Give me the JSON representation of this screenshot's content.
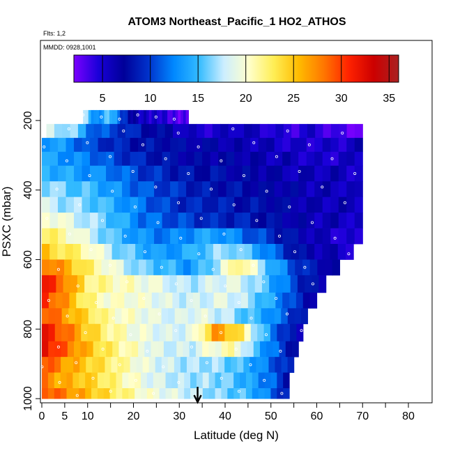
{
  "chart_data": {
    "type": "heatmap",
    "title": "ATOM3 Northeast_Pacific_1 HO2_ATHOS",
    "flights_label": "Flts: 1,2",
    "dates_label": "MMDD: 0928,1001",
    "xlabel": "Latitude (deg N)",
    "ylabel": "PSXC (mbar)",
    "xlim": [
      0,
      80
    ],
    "ylim": [
      1000,
      100
    ],
    "x_ticks": [
      "0",
      "5",
      "10",
      "20",
      "30",
      "40",
      "50",
      "60",
      "70",
      "80"
    ],
    "x_tick_values": [
      0,
      5,
      10,
      20,
      30,
      40,
      50,
      60,
      70,
      80
    ],
    "y_ticks": [
      "200",
      "400",
      "600",
      "800",
      "1000"
    ],
    "y_tick_values": [
      200,
      400,
      600,
      800,
      1000
    ],
    "colorbar": {
      "range": [
        2,
        36
      ],
      "tick_labels": [
        "5",
        "10",
        "15",
        "20",
        "25",
        "30",
        "35"
      ],
      "tick_values": [
        5,
        10,
        15,
        20,
        25,
        30,
        35
      ],
      "colors": [
        "#7b00ff",
        "#1800d8",
        "#000099",
        "#0033cc",
        "#0088ff",
        "#33bbff",
        "#cceeff",
        "#ffffcc",
        "#ffee55",
        "#ffbb00",
        "#ff7700",
        "#ff2200",
        "#cc0000",
        "#aa2222"
      ]
    },
    "arrow_latitude": 34,
    "grid": false,
    "rows": [
      {
        "p": 190,
        "x0": 9,
        "x1": 32,
        "v": [
          18,
          12,
          16,
          10,
          6,
          5,
          5,
          3,
          3
        ]
      },
      {
        "p": 230,
        "x0": 1,
        "x1": 70,
        "v": [
          18,
          17,
          11,
          10,
          8,
          7,
          5,
          5,
          6,
          5,
          4,
          5,
          3,
          3
        ]
      },
      {
        "p": 270,
        "x0": 0,
        "x1": 70,
        "v": [
          14,
          13,
          10,
          9,
          8,
          8,
          7,
          7,
          6,
          6,
          5,
          5,
          5,
          6
        ]
      },
      {
        "p": 310,
        "x0": 0,
        "x1": 70,
        "v": [
          14,
          13,
          12,
          10,
          9,
          8,
          7,
          7,
          7,
          6,
          6,
          5,
          5,
          6
        ]
      },
      {
        "p": 350,
        "x0": 0,
        "x1": 70,
        "v": [
          15,
          14,
          13,
          12,
          10,
          9,
          8,
          8,
          7,
          7,
          6,
          6,
          6,
          5
        ]
      },
      {
        "p": 400,
        "x0": 0,
        "x1": 70,
        "v": [
          17,
          16,
          15,
          13,
          11,
          10,
          9,
          8,
          8,
          7,
          7,
          6,
          6,
          5
        ]
      },
      {
        "p": 440,
        "x0": 0,
        "x1": 70,
        "v": [
          18,
          17,
          16,
          14,
          12,
          10,
          9,
          9,
          8,
          8,
          7,
          6,
          6,
          6
        ]
      },
      {
        "p": 490,
        "x0": 0,
        "x1": 70,
        "v": [
          21,
          19,
          17,
          15,
          12,
          11,
          10,
          9,
          9,
          8,
          7,
          6,
          6,
          5
        ]
      },
      {
        "p": 530,
        "x0": 0,
        "x1": 70,
        "v": [
          23,
          21,
          18,
          15,
          13,
          12,
          13,
          14,
          12,
          10,
          8,
          6,
          5,
          4
        ]
      },
      {
        "p": 580,
        "x0": 0,
        "x1": 68,
        "v": [
          25,
          23,
          21,
          17,
          15,
          13,
          14,
          16,
          17,
          14,
          10,
          7,
          6,
          5
        ]
      },
      {
        "p": 620,
        "x0": 0,
        "x1": 65,
        "v": [
          29,
          26,
          22,
          19,
          16,
          15,
          13,
          17,
          23,
          16,
          11,
          8,
          6
        ]
      },
      {
        "p": 670,
        "x0": 0,
        "x1": 62,
        "v": [
          32,
          28,
          22,
          21,
          20,
          19,
          17,
          18,
          19,
          17,
          13,
          9,
          6
        ]
      },
      {
        "p": 720,
        "x0": 0,
        "x1": 60,
        "v": [
          31,
          27,
          22,
          20,
          20,
          19,
          18,
          18,
          19,
          17,
          14,
          10,
          6
        ]
      },
      {
        "p": 760,
        "x0": 0,
        "x1": 58,
        "v": [
          30,
          27,
          24,
          21,
          20,
          19,
          18,
          19,
          18,
          16,
          14,
          11,
          7
        ]
      },
      {
        "p": 810,
        "x0": 0,
        "x1": 57,
        "v": [
          32,
          29,
          25,
          22,
          20,
          19,
          18,
          19,
          27,
          24,
          16,
          10,
          6
        ]
      },
      {
        "p": 860,
        "x0": 0,
        "x1": 56,
        "v": [
          33,
          29,
          26,
          23,
          21,
          19,
          18,
          18,
          20,
          21,
          15,
          11,
          7
        ]
      },
      {
        "p": 900,
        "x0": 0,
        "x1": 55,
        "v": [
          30,
          27,
          25,
          23,
          21,
          19,
          18,
          17,
          17,
          16,
          14,
          11,
          8
        ]
      },
      {
        "p": 950,
        "x0": 0,
        "x1": 54,
        "v": [
          28,
          26,
          25,
          23,
          21,
          19,
          18,
          17,
          17,
          16,
          14,
          12,
          8
        ]
      },
      {
        "p": 990,
        "x0": 0,
        "x1": 54,
        "v": [
          30,
          28,
          26,
          24,
          22,
          20,
          19,
          18,
          17,
          16,
          15,
          12,
          8
        ]
      }
    ]
  }
}
